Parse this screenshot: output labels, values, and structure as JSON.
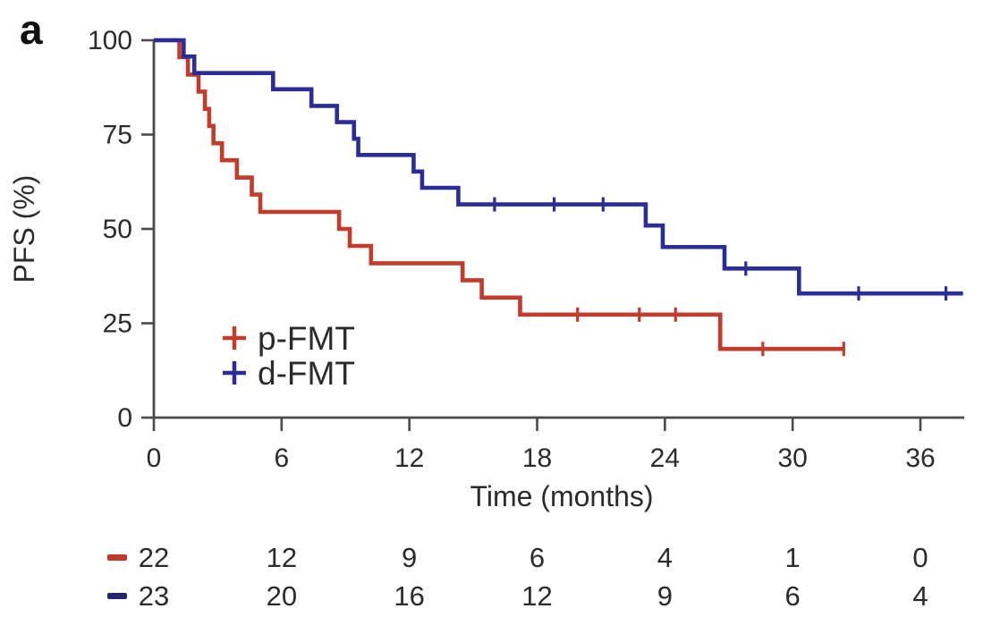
{
  "panel_label": "a",
  "colors": {
    "red_series": "#c23b2b",
    "blue_series": "#2a2d99",
    "risk_red_marker": "#c0392b",
    "risk_blue_marker": "#23256e",
    "axis": "#4a4a4a",
    "text": "#2b2b2b",
    "background": "#ffffff"
  },
  "legend": {
    "items": [
      {
        "label": "p-FMT",
        "color": "#c23b2b",
        "marker": "plus"
      },
      {
        "label": "d-FMT",
        "color": "#2a2d99",
        "marker": "plus"
      }
    ]
  },
  "chart_data": {
    "type": "line",
    "subtype": "kaplan-meier-step",
    "title": "",
    "xlabel": "Time (months)",
    "ylabel": "PFS (%)",
    "xlim": [
      0,
      38
    ],
    "ylim": [
      0,
      100
    ],
    "x_ticks": [
      0,
      6,
      12,
      18,
      24,
      30,
      36
    ],
    "y_ticks": [
      0,
      25,
      50,
      75,
      100
    ],
    "grid": false,
    "legend_position": "inside-left-middle",
    "series": [
      {
        "name": "p-FMT",
        "color": "#c23b2b",
        "points": [
          [
            0,
            100
          ],
          [
            1.2,
            95.5
          ],
          [
            1.6,
            90.9
          ],
          [
            2.1,
            86.4
          ],
          [
            2.4,
            81.8
          ],
          [
            2.6,
            77.3
          ],
          [
            2.8,
            72.7
          ],
          [
            3.2,
            68.2
          ],
          [
            3.9,
            63.6
          ],
          [
            4.6,
            59.1
          ],
          [
            5.0,
            54.5
          ],
          [
            8.7,
            50.0
          ],
          [
            9.2,
            45.5
          ],
          [
            10.2,
            40.9
          ],
          [
            14.5,
            36.4
          ],
          [
            15.4,
            31.8
          ],
          [
            17.2,
            27.3
          ],
          [
            26.6,
            18.2
          ],
          [
            32.4,
            18.2
          ]
        ],
        "censor_marks": [
          [
            19.9,
            27.3
          ],
          [
            22.8,
            27.3
          ],
          [
            24.5,
            27.3
          ],
          [
            28.6,
            18.2
          ],
          [
            32.4,
            18.2
          ]
        ]
      },
      {
        "name": "d-FMT",
        "color": "#2a2d99",
        "points": [
          [
            0,
            100
          ],
          [
            1.4,
            95.7
          ],
          [
            1.9,
            91.3
          ],
          [
            5.6,
            87.0
          ],
          [
            7.4,
            82.6
          ],
          [
            8.6,
            78.3
          ],
          [
            9.4,
            73.9
          ],
          [
            9.6,
            69.6
          ],
          [
            12.2,
            65.2
          ],
          [
            12.6,
            60.9
          ],
          [
            14.3,
            56.5
          ],
          [
            23.1,
            50.9
          ],
          [
            23.9,
            45.2
          ],
          [
            26.8,
            39.5
          ],
          [
            30.3,
            32.9
          ],
          [
            38.0,
            32.9
          ]
        ],
        "censor_marks": [
          [
            16.0,
            56.5
          ],
          [
            18.8,
            56.5
          ],
          [
            21.1,
            56.5
          ],
          [
            27.8,
            39.5
          ],
          [
            33.1,
            32.9
          ],
          [
            37.2,
            32.9
          ]
        ]
      }
    ]
  },
  "risk_table": {
    "times": [
      0,
      6,
      12,
      18,
      24,
      30,
      36
    ],
    "rows": [
      {
        "name": "p-FMT",
        "color": "#c0392b",
        "counts": [
          "22",
          "12",
          "9",
          "6",
          "4",
          "1",
          "0"
        ]
      },
      {
        "name": "d-FMT",
        "color": "#23256e",
        "counts": [
          "23",
          "20",
          "16",
          "12",
          "9",
          "6",
          "4"
        ]
      }
    ]
  }
}
